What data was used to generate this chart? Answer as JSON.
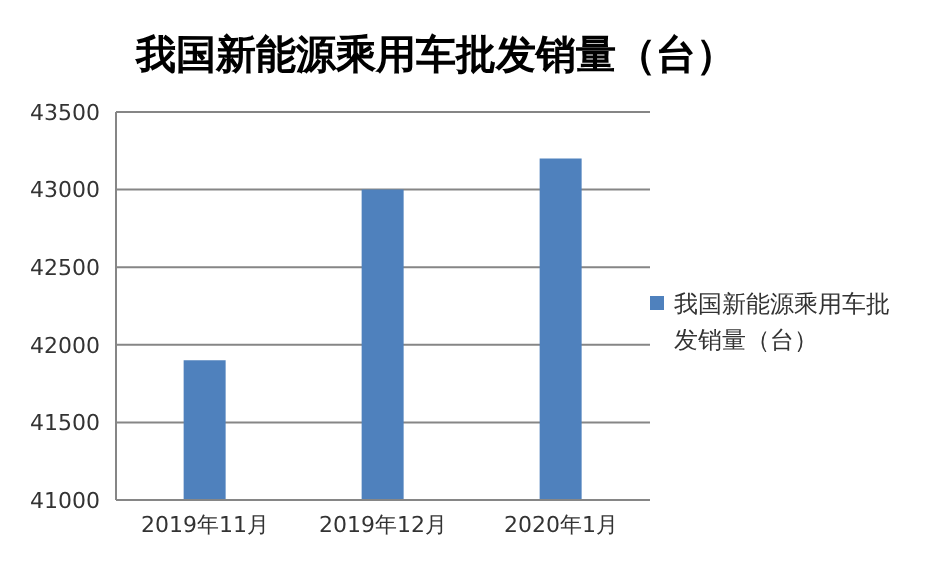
{
  "chart_data": {
    "type": "bar",
    "title": "我国新能源乘用车批发销量（台）",
    "categories": [
      "2019年11月",
      "2019年12月",
      "2020年1月"
    ],
    "series": [
      {
        "name": "我国新能源乘用车批发销量（台）",
        "color": "#4f81bd",
        "values": [
          41900,
          43000,
          43200
        ]
      }
    ],
    "ylim": [
      41000,
      43500
    ],
    "yticks": [
      41000,
      41500,
      42000,
      42500,
      43000,
      43500
    ],
    "grid": "y",
    "legend": "right"
  }
}
